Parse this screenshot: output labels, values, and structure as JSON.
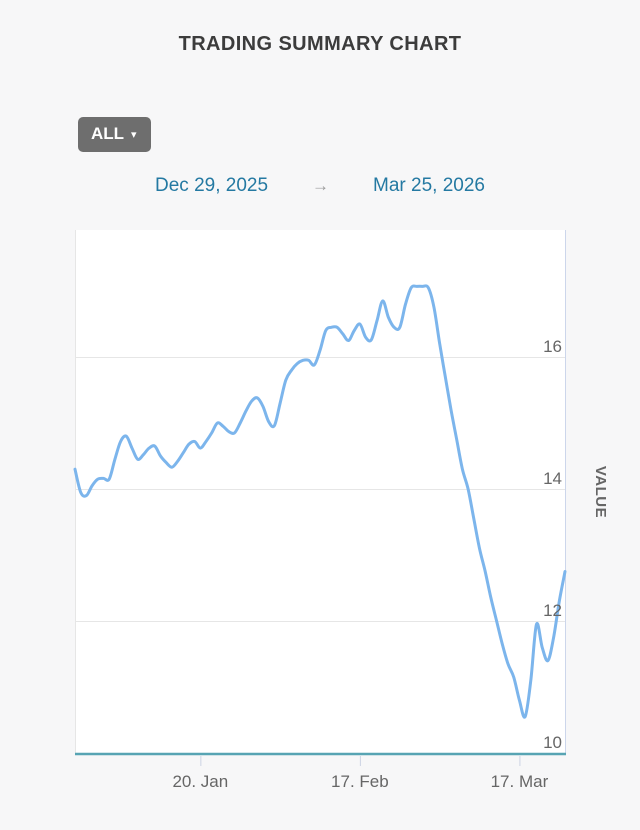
{
  "header": {
    "title": "TRADING SUMMARY CHART"
  },
  "controls": {
    "range_button": {
      "label": "ALL",
      "caret": "▾"
    },
    "date_range": {
      "start": "Dec 29, 2025",
      "arrow": "→",
      "end": "Mar 25, 2026"
    }
  },
  "colors": {
    "background": "#f7f7f8",
    "plot_background": "#ffffff",
    "series_line": "#7cb5ec",
    "gridline": "#e6e6e6",
    "plot_border_left": "#e6e6e6",
    "plot_border_right": "#ccd6eb",
    "x_axis_line": "#57a4b3",
    "tick_mark": "#ccd3e4",
    "axis_label_text": "#666666",
    "title_text": "#3c3c3c",
    "date_text": "#2479a2",
    "button_background": "#6e6e6e"
  },
  "chart_data": {
    "type": "line",
    "title": "TRADING SUMMARY CHART",
    "ylabel": "VALUE",
    "xlabel": "",
    "legend": "none",
    "grid": "horizontal",
    "x_start": "Dec 29, 2025",
    "x_end": "Mar 25, 2026",
    "x_total_days": 86,
    "x_ticks": [
      {
        "label": "20. Jan",
        "day": 22
      },
      {
        "label": "17. Feb",
        "day": 50
      },
      {
        "label": "17. Mar",
        "day": 78
      }
    ],
    "y_ticks": [
      10,
      12,
      14,
      16
    ],
    "ylim": [
      10,
      17.9
    ],
    "series": [
      {
        "name": "VALUE",
        "color": "#7cb5ec",
        "values": [
          14.3,
          13.95,
          13.9,
          14.05,
          14.15,
          14.16,
          14.15,
          14.45,
          14.72,
          14.8,
          14.62,
          14.45,
          14.52,
          14.62,
          14.65,
          14.5,
          14.4,
          14.33,
          14.42,
          14.55,
          14.68,
          14.72,
          14.62,
          14.72,
          14.85,
          15.0,
          14.95,
          14.87,
          14.85,
          15.0,
          15.18,
          15.33,
          15.38,
          15.25,
          15.02,
          14.96,
          15.3,
          15.65,
          15.8,
          15.9,
          15.95,
          15.95,
          15.88,
          16.1,
          16.4,
          16.45,
          16.45,
          16.35,
          16.25,
          16.4,
          16.5,
          16.3,
          16.26,
          16.55,
          16.85,
          16.6,
          16.45,
          16.45,
          16.8,
          17.05,
          17.07,
          17.07,
          17.05,
          16.75,
          16.2,
          15.7,
          15.2,
          14.75,
          14.3,
          14.0,
          13.55,
          13.1,
          12.75,
          12.35,
          12.0,
          11.65,
          11.35,
          11.15,
          10.8,
          10.55,
          11.1,
          11.95,
          11.6,
          11.4,
          11.75,
          12.3,
          12.75
        ]
      }
    ]
  }
}
